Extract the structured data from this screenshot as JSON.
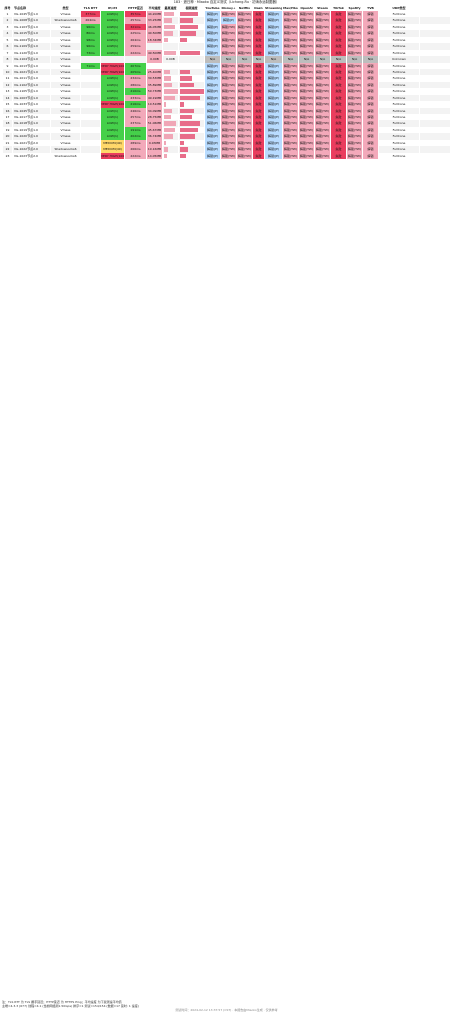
{
  "title": "183 · 遮日神 · Miaoko 自定义测试（Lichang.Ru · 初涛永远制图器）",
  "headers": [
    "序号",
    "节点名称",
    "类型",
    "TLS RTT",
    "IP/ctt",
    "HTTP延迟",
    "平均速度",
    "最高速度",
    "视频速度",
    "YouTube",
    "Disney+",
    "Netflix",
    "Dazn",
    "Streamings",
    "Max/Hbo",
    "OpenAI",
    "Steam",
    "TikTok",
    "Spotify",
    "TVB",
    "UDP类型"
  ],
  "rows": [
    [
      "1",
      "VG-1045节点1.0",
      "Vmess",
      "377ms",
      "LOW(1)",
      "357ms",
      "44.20MB",
      "",
      "",
      "解锁(JP)",
      "解锁(TW)",
      "解锁(TW)",
      "失败",
      "解锁(JP)",
      "解锁(TW)",
      "解锁(TW)",
      "解锁(TW)",
      "失败",
      "解锁(TW)",
      "解锁",
      "FullCone"
    ],
    [
      "2",
      "VG-1008节点1.0",
      "Shadowsocks6",
      "264ms",
      "LOW(1)",
      "257ms",
      "33.25MB",
      "",
      "",
      "解锁(JP)",
      "解锁(JP)",
      "解锁(TW)",
      "失败",
      "解锁(JP)",
      "解锁(TW)",
      "解锁(TW)",
      "解锁(TW)",
      "失败",
      "解锁(TW)",
      "解锁",
      "FullCone"
    ],
    [
      "3",
      "VG-1103节点1.0",
      "Vmess",
      "96ms",
      "LOW(1)",
      "321ms",
      "46.05MB",
      "",
      "",
      "解锁(JP)",
      "解锁(TW)",
      "解锁(TW)",
      "失败",
      "解锁(JP)",
      "解锁(TW)",
      "解锁(TW)",
      "解锁(TW)",
      "失败",
      "解锁(TW)",
      "解锁",
      "FullCone"
    ],
    [
      "4",
      "VG-1015节点1.0",
      "Vmess",
      "80ms",
      "LOW(1)",
      "225ms",
      "40.50MB",
      "",
      "",
      "解锁(JP)",
      "解锁(TW)",
      "解锁(TW)",
      "失败",
      "解锁(JP)",
      "解锁(TW)",
      "解锁(TW)",
      "解锁(TW)",
      "失败",
      "解锁(TW)",
      "解锁",
      "FullCone"
    ],
    [
      "5",
      "VG-1004节点1.0",
      "Vmess",
      "98ms",
      "LOW(1)",
      "264ms",
      "18.34MB",
      "",
      "",
      "解锁(JP)",
      "解锁(TW)",
      "解锁(TW)",
      "失败",
      "解锁(JP)",
      "解锁(TW)",
      "解锁(TW)",
      "解锁(TW)",
      "失败",
      "解锁(TW)",
      "解锁",
      "FullCone"
    ],
    [
      "6",
      "VG-1109节点1.0",
      "Vmess",
      "96ms",
      "LOW(1)",
      "259ms",
      "",
      "",
      "",
      "解锁(JP)",
      "解锁(TW)",
      "解锁(TW)",
      "失败",
      "解锁(JP)",
      "解锁(TW)",
      "解锁(TW)",
      "解锁(TW)",
      "失败",
      "解锁(TW)",
      "解锁",
      "FullCone"
    ],
    [
      "7",
      "VG-1120节点1.0",
      "Vmess",
      "73ms",
      "LOW(1)",
      "222ms",
      "49.50MB",
      "",
      "",
      "解锁(JP)",
      "解锁(TW)",
      "解锁(TW)",
      "失败",
      "解锁(JP)",
      "解锁(TW)",
      "解锁(TW)",
      "解锁(TW)",
      "失败",
      "解锁(TW)",
      "解锁",
      "FullCone"
    ],
    [
      "8",
      "VG-1104节点1.0",
      "Vmess",
      "",
      "",
      "",
      "0.00B",
      "0.00B",
      "",
      "N/A",
      "N/A",
      "N/A",
      "N/A",
      "N/A",
      "N/A",
      "N/A",
      "N/A",
      "N/A",
      "N/A",
      "N/A",
      "Unknown"
    ],
    [
      "9",
      "VG-1013节点1.0",
      "Vmess",
      "71ms",
      "VERY HIGH(100)",
      "207ms",
      "",
      "",
      "",
      "解锁(JP)",
      "解锁(TW)",
      "解锁(TW)",
      "失败",
      "解锁(JP)",
      "解锁(TW)",
      "解锁(TW)",
      "解锁(TW)",
      "失败",
      "解锁(TW)",
      "解锁",
      "FullCone"
    ],
    [
      "10",
      "VG-1021节点1.0",
      "Vmess",
      "",
      "VERY HIGH(100)",
      "205ms",
      "25.40MB",
      "",
      "",
      "解锁(JP)",
      "解锁(TW)",
      "解锁(TW)",
      "失败",
      "解锁(JP)",
      "解锁(TW)",
      "解锁(TW)",
      "解锁(TW)",
      "失败",
      "解锁(TW)",
      "解锁",
      "FullCone"
    ],
    [
      "11",
      "VG-1011节点1.0",
      "Vmess",
      "",
      "LOW(1)",
      "232ms",
      "30.53MB",
      "",
      "",
      "解锁(JP)",
      "解锁(TW)",
      "解锁(TW)",
      "失败",
      "解锁(JP)",
      "解锁(TW)",
      "解锁(TW)",
      "解锁(TW)",
      "失败",
      "解锁(TW)",
      "解锁",
      "FullCone"
    ],
    [
      "12",
      "VG-1102节点1.0",
      "Vmess",
      "",
      "LOW(1)",
      "280ms",
      "35.89MB",
      "",
      "",
      "解锁(JP)",
      "解锁(TW)",
      "解锁(TW)",
      "失败",
      "解锁(JP)",
      "解锁(TW)",
      "解锁(TW)",
      "解锁(TW)",
      "失败",
      "解锁(TW)",
      "解锁",
      "FullCone"
    ],
    [
      "13",
      "VG-1105节点1.0",
      "Vmess",
      "",
      "LOW(1)",
      "210ms",
      "59.73MB",
      "",
      "",
      "解锁(JP)",
      "解锁(TW)",
      "解锁(TW)",
      "失败",
      "解锁(JP)",
      "解锁(TW)",
      "解锁(TW)",
      "解锁(TW)",
      "失败",
      "解锁(TW)",
      "解锁",
      "FullCone"
    ],
    [
      "14",
      "VG-1003节点1.0",
      "Vmess",
      "",
      "LOW(1)",
      "233ms",
      "49.19MB",
      "",
      "",
      "解锁(JP)",
      "解锁(TW)",
      "解锁(TW)",
      "失败",
      "解锁(JP)",
      "解锁(TW)",
      "解锁(TW)",
      "解锁(TW)",
      "失败",
      "解锁(TW)",
      "解锁",
      "FullCone"
    ],
    [
      "15",
      "VG-1033节点1.0",
      "Vmess",
      "",
      "VERY HIGH(100)",
      "216ms",
      "10.51MB",
      "",
      "",
      "解锁(JP)",
      "解锁(TW)",
      "解锁(TW)",
      "失败",
      "解锁(JP)",
      "解锁(TW)",
      "解锁(TW)",
      "解锁(TW)",
      "失败",
      "解锁(TW)",
      "解锁",
      "FullCone"
    ],
    [
      "16",
      "VG-1045节点1.0",
      "Vmess",
      "",
      "LOW(1)",
      "246ms",
      "34.09MB",
      "",
      "",
      "解锁(JP)",
      "解锁(TW)",
      "解锁(TW)",
      "失败",
      "解锁(JP)",
      "解锁(TW)",
      "解锁(TW)",
      "解锁(TW)",
      "失败",
      "解锁(TW)",
      "解锁",
      "FullCone"
    ],
    [
      "17",
      "VG-1017节点1.0",
      "Vmess",
      "",
      "LOW(1)",
      "257ms",
      "28.75MB",
      "",
      "",
      "解锁(JP)",
      "解锁(TW)",
      "解锁(TW)",
      "失败",
      "解锁(JP)",
      "解锁(TW)",
      "解锁(TW)",
      "解锁(TW)",
      "失败",
      "解锁(TW)",
      "解锁",
      "FullCone"
    ],
    [
      "18",
      "VG-1018节点1.0",
      "Vmess",
      "",
      "LOW(1)",
      "237ms",
      "51.06MB",
      "",
      "",
      "解锁(JP)",
      "解锁(TW)",
      "解锁(TW)",
      "失败",
      "解锁(JP)",
      "解锁(TW)",
      "解锁(TW)",
      "解锁(TW)",
      "失败",
      "解锁(TW)",
      "解锁",
      "FullCone"
    ],
    [
      "19",
      "VG-1019节点1.0",
      "Vmess",
      "",
      "LOW(1)",
      "191ms",
      "45.67MB",
      "",
      "",
      "解锁(JP)",
      "解锁(TW)",
      "解锁(TW)",
      "失败",
      "解锁(JP)",
      "解锁(TW)",
      "解锁(TW)",
      "解锁(TW)",
      "失败",
      "解锁(TW)",
      "解锁",
      "FullCone"
    ],
    [
      "20",
      "VG-1020节点1.0",
      "Vmess",
      "",
      "LOW(1)",
      "202ms",
      "36.74MB",
      "",
      "",
      "解锁(JP)",
      "解锁(TW)",
      "解锁(TW)",
      "失败",
      "解锁(JP)",
      "解锁(TW)",
      "解锁(TW)",
      "解锁(TW)",
      "失败",
      "解锁(TW)",
      "解锁",
      "FullCone"
    ],
    [
      "21",
      "VG-1021节点2.0",
      "Vmess",
      "",
      "MEDIUM(49)",
      "289ms",
      "9.93MB",
      "",
      "",
      "解锁(JP)",
      "解锁(TW)",
      "解锁(TW)",
      "失败",
      "解锁(JP)",
      "解锁(TW)",
      "解锁(TW)",
      "解锁(TW)",
      "失败",
      "解锁(TW)",
      "解锁",
      "FullCone"
    ],
    [
      "22",
      "VG-1022节点2.0",
      "Shadowsocks6",
      "",
      "MEDIUM(49)",
      "266ms",
      "19.16MB",
      "",
      "",
      "解锁(JP)",
      "解锁(TW)",
      "解锁(TW)",
      "失败",
      "解锁(JP)",
      "解锁(TW)",
      "解锁(TW)",
      "解锁(TW)",
      "失败",
      "解锁(TW)",
      "解锁",
      "FullCone"
    ],
    [
      "23",
      "VG-1023节点2.0",
      "Shadowsocks6",
      "",
      "VERY HIGH(100)",
      "222ms",
      "14.05MB",
      "",
      "",
      "解锁(JP)",
      "解锁(TW)",
      "解锁(TW)",
      "失败",
      "解锁(JP)",
      "解锁(TW)",
      "解锁(TW)",
      "解锁(TW)",
      "失败",
      "解锁(TW)",
      "解锁",
      "FullCone"
    ]
  ],
  "footer": {
    "legend": "注：TLS RTT 为 TLS 握手延迟；HTTP延迟 为 HTTPS Ping；平均速度 为下载测速平均值",
    "summary": "主端=4.3.3 (677) 线程=4.1 (当前网络测1.50Gps) 排序=1 测试=154/154 (数据=17 延时: 1 速度)",
    "time": "测试时间：2024-02-12 13:37:57 (CST) · 本报告由Miaoko生成 · 仅供参考"
  },
  "colors": {
    "green": "#45d04a",
    "red": "#ea3d5e",
    "pink": "#f3a9ba",
    "blue": "#7bb6f6",
    "lightblue": "#b9dcff",
    "gray": "#bdbdbd",
    "yellow": "#ffd86a",
    "header": "#fff"
  }
}
